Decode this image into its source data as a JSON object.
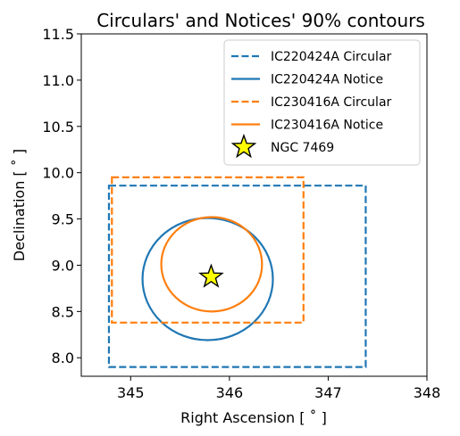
{
  "chart_data": {
    "type": "scatter",
    "title": "Circulars' and Notices' 90% contours",
    "xlabel": "Right Ascension [$^\\circ$]",
    "xlabel_text": "Right Ascension [ ˚ ]",
    "ylabel_text": "Declination [ ˚ ]",
    "xlim": [
      344.5,
      348.0
    ],
    "ylim": [
      7.8,
      11.5
    ],
    "xticks": [
      "345",
      "346",
      "347",
      "348"
    ],
    "yticks": [
      "8.0",
      "8.5",
      "9.0",
      "9.5",
      "10.0",
      "10.5",
      "11.0",
      "11.5"
    ],
    "xtick_values": [
      345,
      346,
      347,
      348
    ],
    "ytick_values": [
      8.0,
      8.5,
      9.0,
      9.5,
      10.0,
      10.5,
      11.0,
      11.5
    ],
    "grid": false,
    "legend_position": "top-right",
    "colors": {
      "blue": "#1f77b4",
      "orange": "#ff7f0e",
      "star": "#ffff00"
    },
    "series": [
      {
        "name": "IC220424A Circular",
        "shape": "rectangle",
        "style": "dashed",
        "color": "#1f77b4",
        "ra_range": [
          344.78,
          347.38
        ],
        "dec_range": [
          7.9,
          9.86
        ]
      },
      {
        "name": "IC220424A Notice",
        "shape": "ellipse",
        "style": "solid",
        "color": "#1f77b4",
        "center": [
          345.78,
          8.85
        ],
        "ra_radius": 0.66,
        "dec_radius": 0.66
      },
      {
        "name": "IC230416A Circular",
        "shape": "rectangle",
        "style": "dashed",
        "color": "#ff7f0e",
        "ra_range": [
          344.81,
          346.75
        ],
        "dec_range": [
          8.38,
          9.95
        ]
      },
      {
        "name": "IC230416A Notice",
        "shape": "ellipse",
        "style": "solid",
        "color": "#ff7f0e",
        "center": [
          345.82,
          9.01
        ],
        "ra_radius": 0.51,
        "dec_radius": 0.51
      },
      {
        "name": "NGC 7469",
        "shape": "star",
        "color": "#ffff00",
        "point": [
          345.815,
          8.874
        ]
      }
    ]
  }
}
